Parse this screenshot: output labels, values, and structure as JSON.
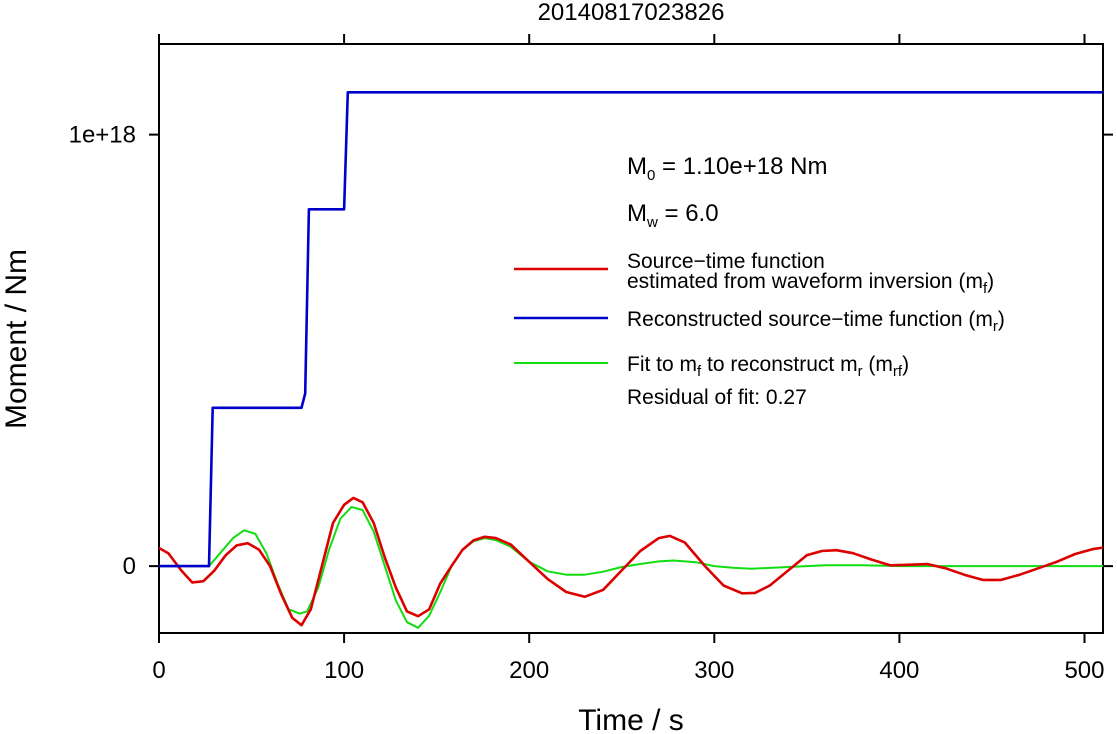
{
  "chart_data": {
    "type": "line",
    "title": "20140817023826",
    "xlabel": "Time / s",
    "ylabel": "Moment / Nm",
    "xlim": [
      0,
      510
    ],
    "ylim": [
      -1.55e+17,
      1.21e+18
    ],
    "x_ticks": [
      {
        "value": 0,
        "label": "0"
      },
      {
        "value": 100,
        "label": "100"
      },
      {
        "value": 200,
        "label": "200"
      },
      {
        "value": 300,
        "label": "300"
      },
      {
        "value": 400,
        "label": "400"
      },
      {
        "value": 500,
        "label": "500"
      }
    ],
    "y_ticks": [
      {
        "value": 0,
        "label": "0"
      },
      {
        "value": 1e+18,
        "label": "1e+18"
      }
    ],
    "grid": false,
    "legend_position": "right",
    "annotations": {
      "m0": {
        "symbol": "M",
        "sub": "0",
        "text": " = 1.10e+18 Nm"
      },
      "mw": {
        "symbol": "M",
        "sub": "w",
        "text": " = 6.0"
      },
      "residual": "Residual of fit: 0.27"
    },
    "legend": {
      "stf_line1": "Source−time function",
      "stf_line2": "estimated from waveform inversion (m",
      "stf_line2_sub": "f",
      "stf_line2_end": ")",
      "rec_text": "Reconstructed source−time function (m",
      "rec_sub": "r",
      "rec_end": ")",
      "fit_text1": "Fit to m",
      "fit_sub1": "f",
      "fit_text2": " to reconstruct m",
      "fit_sub2": "r",
      "fit_text3": " (m",
      "fit_sub3": "rf",
      "fit_text4": ")"
    },
    "series": [
      {
        "key": "reconstructed",
        "color": "#0000cc",
        "x": [
          0,
          27,
          29,
          77,
          79,
          81,
          100,
          102,
          510
        ],
        "y": [
          0,
          0,
          3.67e+17,
          3.67e+17,
          4e+17,
          8.27e+17,
          8.27e+17,
          1.098e+18,
          1.098e+18
        ]
      },
      {
        "key": "estimated",
        "color": "#dd0000",
        "x": [
          0,
          5,
          12,
          18,
          24,
          30,
          36,
          42,
          48,
          54,
          60,
          66,
          72,
          77,
          82,
          88,
          94,
          100,
          105,
          110,
          116,
          122,
          128,
          134,
          140,
          146,
          152,
          158,
          164,
          170,
          176,
          182,
          190,
          200,
          210,
          220,
          230,
          240,
          250,
          260,
          270,
          276,
          284,
          295,
          305,
          315,
          322,
          330,
          340,
          350,
          358,
          366,
          375,
          385,
          395,
          405,
          415,
          425,
          435,
          445,
          455,
          465,
          475,
          485,
          495,
          505,
          510
        ],
        "y": [
          4.2e+16,
          3e+16,
          -1e+16,
          -3.8e+16,
          -3.5e+16,
          -1e+16,
          2.5e+16,
          4.8e+16,
          5.3e+16,
          3.8e+16,
          0,
          -6.5e+16,
          -1.2e+17,
          -1.37e+17,
          -1e+17,
          0,
          1e+17,
          1.42e+17,
          1.58e+17,
          1.48e+17,
          1e+17,
          2e+16,
          -5e+16,
          -1.05e+17,
          -1.16e+17,
          -1e+17,
          -4e+16,
          0,
          3.8e+16,
          6e+16,
          6.8e+16,
          6.5e+16,
          5e+16,
          1e+16,
          -3e+16,
          -6e+16,
          -7.1e+16,
          -5.5e+16,
          -1e+16,
          3.5e+16,
          6.5e+16,
          7e+16,
          5.5e+16,
          0,
          -4.5e+16,
          -6.3e+16,
          -6.2e+16,
          -4.5e+16,
          -1e+16,
          2.5e+16,
          3.5e+16,
          3.7e+16,
          3e+16,
          1.5e+16,
          2000000000000000.0,
          3000000000000000.0,
          5000000000000000.0,
          -5000000000000000.0,
          -2e+16,
          -3.2e+16,
          -3.2e+16,
          -2e+16,
          -5000000000000000.0,
          1e+16,
          2.8e+16,
          4e+16,
          4.3e+16
        ]
      },
      {
        "key": "fit",
        "color": "#11dd11",
        "x": [
          0,
          20,
          27,
          33,
          40,
          46,
          52,
          58,
          64,
          70,
          76,
          80,
          86,
          92,
          98,
          104,
          110,
          116,
          122,
          128,
          134,
          140,
          146,
          152,
          158,
          164,
          170,
          176,
          182,
          190,
          200,
          210,
          220,
          230,
          240,
          250,
          260,
          270,
          278,
          290,
          300,
          310,
          320,
          340,
          360,
          380,
          400,
          420,
          440,
          460,
          480,
          500,
          510
        ],
        "y": [
          0,
          0,
          0,
          3e+16,
          6.5e+16,
          8.3e+16,
          7.5e+16,
          3e+16,
          -4e+16,
          -1e+17,
          -1.1e+17,
          -1.05e+17,
          -5e+16,
          4e+16,
          1.1e+17,
          1.37e+17,
          1.3e+17,
          8e+16,
          0,
          -8e+16,
          -1.3e+17,
          -1.43e+17,
          -1.15e+17,
          -6e+16,
          0,
          3.8e+16,
          5.8e+16,
          6.5e+16,
          6e+16,
          4.5e+16,
          1e+16,
          -1.2e+16,
          -2e+16,
          -2e+16,
          -1.3e+16,
          -2000000000000000.0,
          5000000000000000.0,
          1.1e+16,
          1.3e+16,
          9000000000000000.0,
          0,
          -4000000000000000.0,
          -6000000000000000.0,
          -2000000000000000.0,
          2000000000000000.0,
          2000000000000000.0,
          0,
          0,
          0,
          0,
          0,
          0,
          0
        ]
      }
    ]
  }
}
